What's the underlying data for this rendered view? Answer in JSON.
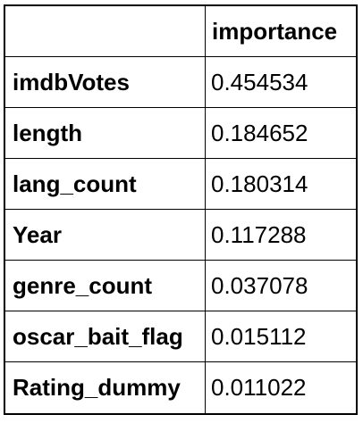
{
  "table": {
    "corner_label": "",
    "column_header": "importance",
    "rows": [
      {
        "feature": "imdbVotes",
        "importance": "0.454534"
      },
      {
        "feature": "length",
        "importance": "0.184652"
      },
      {
        "feature": "lang_count",
        "importance": "0.180314"
      },
      {
        "feature": "Year",
        "importance": "0.117288"
      },
      {
        "feature": "genre_count",
        "importance": "0.037078"
      },
      {
        "feature": "oscar_bait_flag",
        "importance": "0.015112"
      },
      {
        "feature": "Rating_dummy",
        "importance": "0.011022"
      }
    ]
  }
}
